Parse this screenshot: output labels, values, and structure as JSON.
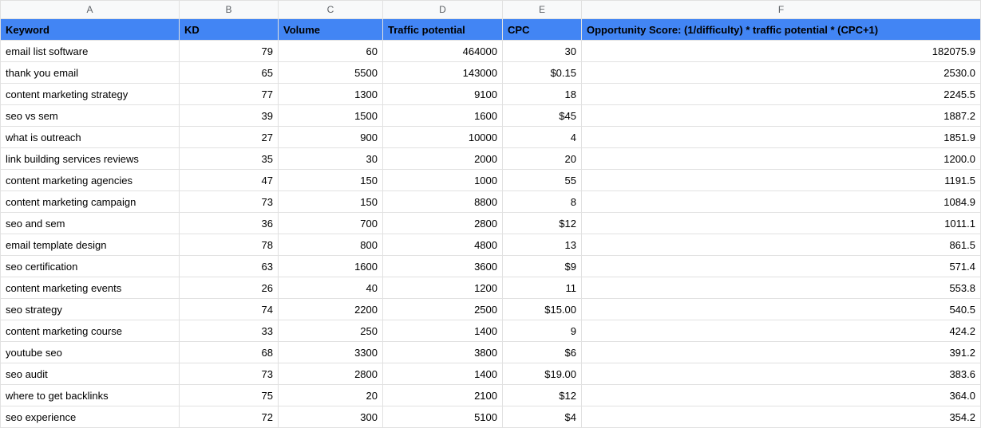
{
  "spreadsheet": {
    "column_letters": [
      "A",
      "B",
      "C",
      "D",
      "E",
      "F"
    ],
    "header_bg": "#4285f4",
    "header_fg": "#000000",
    "col_header_bg": "#f8f9fa",
    "col_header_fg": "#5f6368",
    "grid_color": "#e1e1e1",
    "columns": [
      {
        "label": "Keyword",
        "align": "left"
      },
      {
        "label": "KD",
        "align": "right"
      },
      {
        "label": "Volume",
        "align": "right"
      },
      {
        "label": "Traffic potential",
        "align": "right"
      },
      {
        "label": "CPC",
        "align": "right"
      },
      {
        "label": "Opportunity Score: (1/difficulty) * traffic potential * (CPC+1)",
        "align": "right"
      }
    ],
    "rows": [
      {
        "keyword": "email list software",
        "kd": "79",
        "volume": "60",
        "traffic": "464000",
        "cpc": "30",
        "score": "182075.9"
      },
      {
        "keyword": "thank you email",
        "kd": "65",
        "volume": "5500",
        "traffic": "143000",
        "cpc": "$0.15",
        "score": "2530.0"
      },
      {
        "keyword": "content marketing strategy",
        "kd": "77",
        "volume": "1300",
        "traffic": "9100",
        "cpc": "18",
        "score": "2245.5"
      },
      {
        "keyword": "seo vs sem",
        "kd": "39",
        "volume": "1500",
        "traffic": "1600",
        "cpc": "$45",
        "score": "1887.2"
      },
      {
        "keyword": "what is outreach",
        "kd": "27",
        "volume": "900",
        "traffic": "10000",
        "cpc": "4",
        "score": "1851.9"
      },
      {
        "keyword": "link building services reviews",
        "kd": "35",
        "volume": "30",
        "traffic": "2000",
        "cpc": "20",
        "score": "1200.0"
      },
      {
        "keyword": "content marketing agencies",
        "kd": "47",
        "volume": "150",
        "traffic": "1000",
        "cpc": "55",
        "score": "1191.5"
      },
      {
        "keyword": "content marketing campaign",
        "kd": "73",
        "volume": "150",
        "traffic": "8800",
        "cpc": "8",
        "score": "1084.9"
      },
      {
        "keyword": "seo and sem",
        "kd": "36",
        "volume": "700",
        "traffic": "2800",
        "cpc": "$12",
        "score": "1011.1"
      },
      {
        "keyword": "email template design",
        "kd": "78",
        "volume": "800",
        "traffic": "4800",
        "cpc": "13",
        "score": "861.5"
      },
      {
        "keyword": "seo certification",
        "kd": "63",
        "volume": "1600",
        "traffic": "3600",
        "cpc": "$9",
        "score": "571.4"
      },
      {
        "keyword": "content marketing events",
        "kd": "26",
        "volume": "40",
        "traffic": "1200",
        "cpc": "11",
        "score": "553.8"
      },
      {
        "keyword": "seo strategy",
        "kd": "74",
        "volume": "2200",
        "traffic": "2500",
        "cpc": "$15.00",
        "score": "540.5"
      },
      {
        "keyword": "content marketing course",
        "kd": "33",
        "volume": "250",
        "traffic": "1400",
        "cpc": "9",
        "score": "424.2"
      },
      {
        "keyword": "youtube seo",
        "kd": "68",
        "volume": "3300",
        "traffic": "3800",
        "cpc": "$6",
        "score": "391.2"
      },
      {
        "keyword": "seo audit",
        "kd": "73",
        "volume": "2800",
        "traffic": "1400",
        "cpc": "$19.00",
        "score": "383.6"
      },
      {
        "keyword": "where to get backlinks",
        "kd": "75",
        "volume": "20",
        "traffic": "2100",
        "cpc": "$12",
        "score": "364.0"
      },
      {
        "keyword": "seo experience",
        "kd": "72",
        "volume": "300",
        "traffic": "5100",
        "cpc": "$4",
        "score": "354.2"
      }
    ]
  }
}
